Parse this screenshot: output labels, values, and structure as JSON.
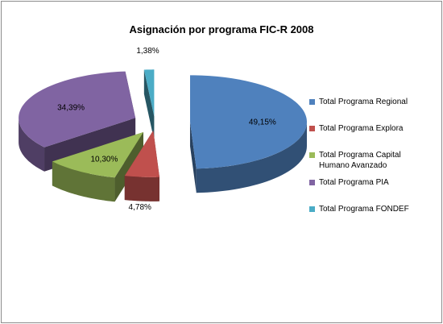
{
  "chart_data": {
    "type": "pie",
    "title": "Asignación por programa FIC-R  2008",
    "style": "3d-exploded",
    "legend_position": "right",
    "slices": [
      {
        "name": "Total Programa Regional",
        "value": 49.15,
        "label": "49,15%",
        "color": "#4f81bd"
      },
      {
        "name": "Total Programa Explora",
        "value": 4.78,
        "label": "4,78%",
        "color": "#c0504d"
      },
      {
        "name": "Total Programa Capital Humano Avanzado",
        "value": 10.3,
        "label": "10,30%",
        "color": "#9bbb59"
      },
      {
        "name": "Total Programa PIA",
        "value": 34.39,
        "label": "34,39%",
        "color": "#8064a2"
      },
      {
        "name": "Total Programa FONDEF",
        "value": 1.38,
        "label": "1,38%",
        "color": "#4bacc6"
      }
    ]
  }
}
